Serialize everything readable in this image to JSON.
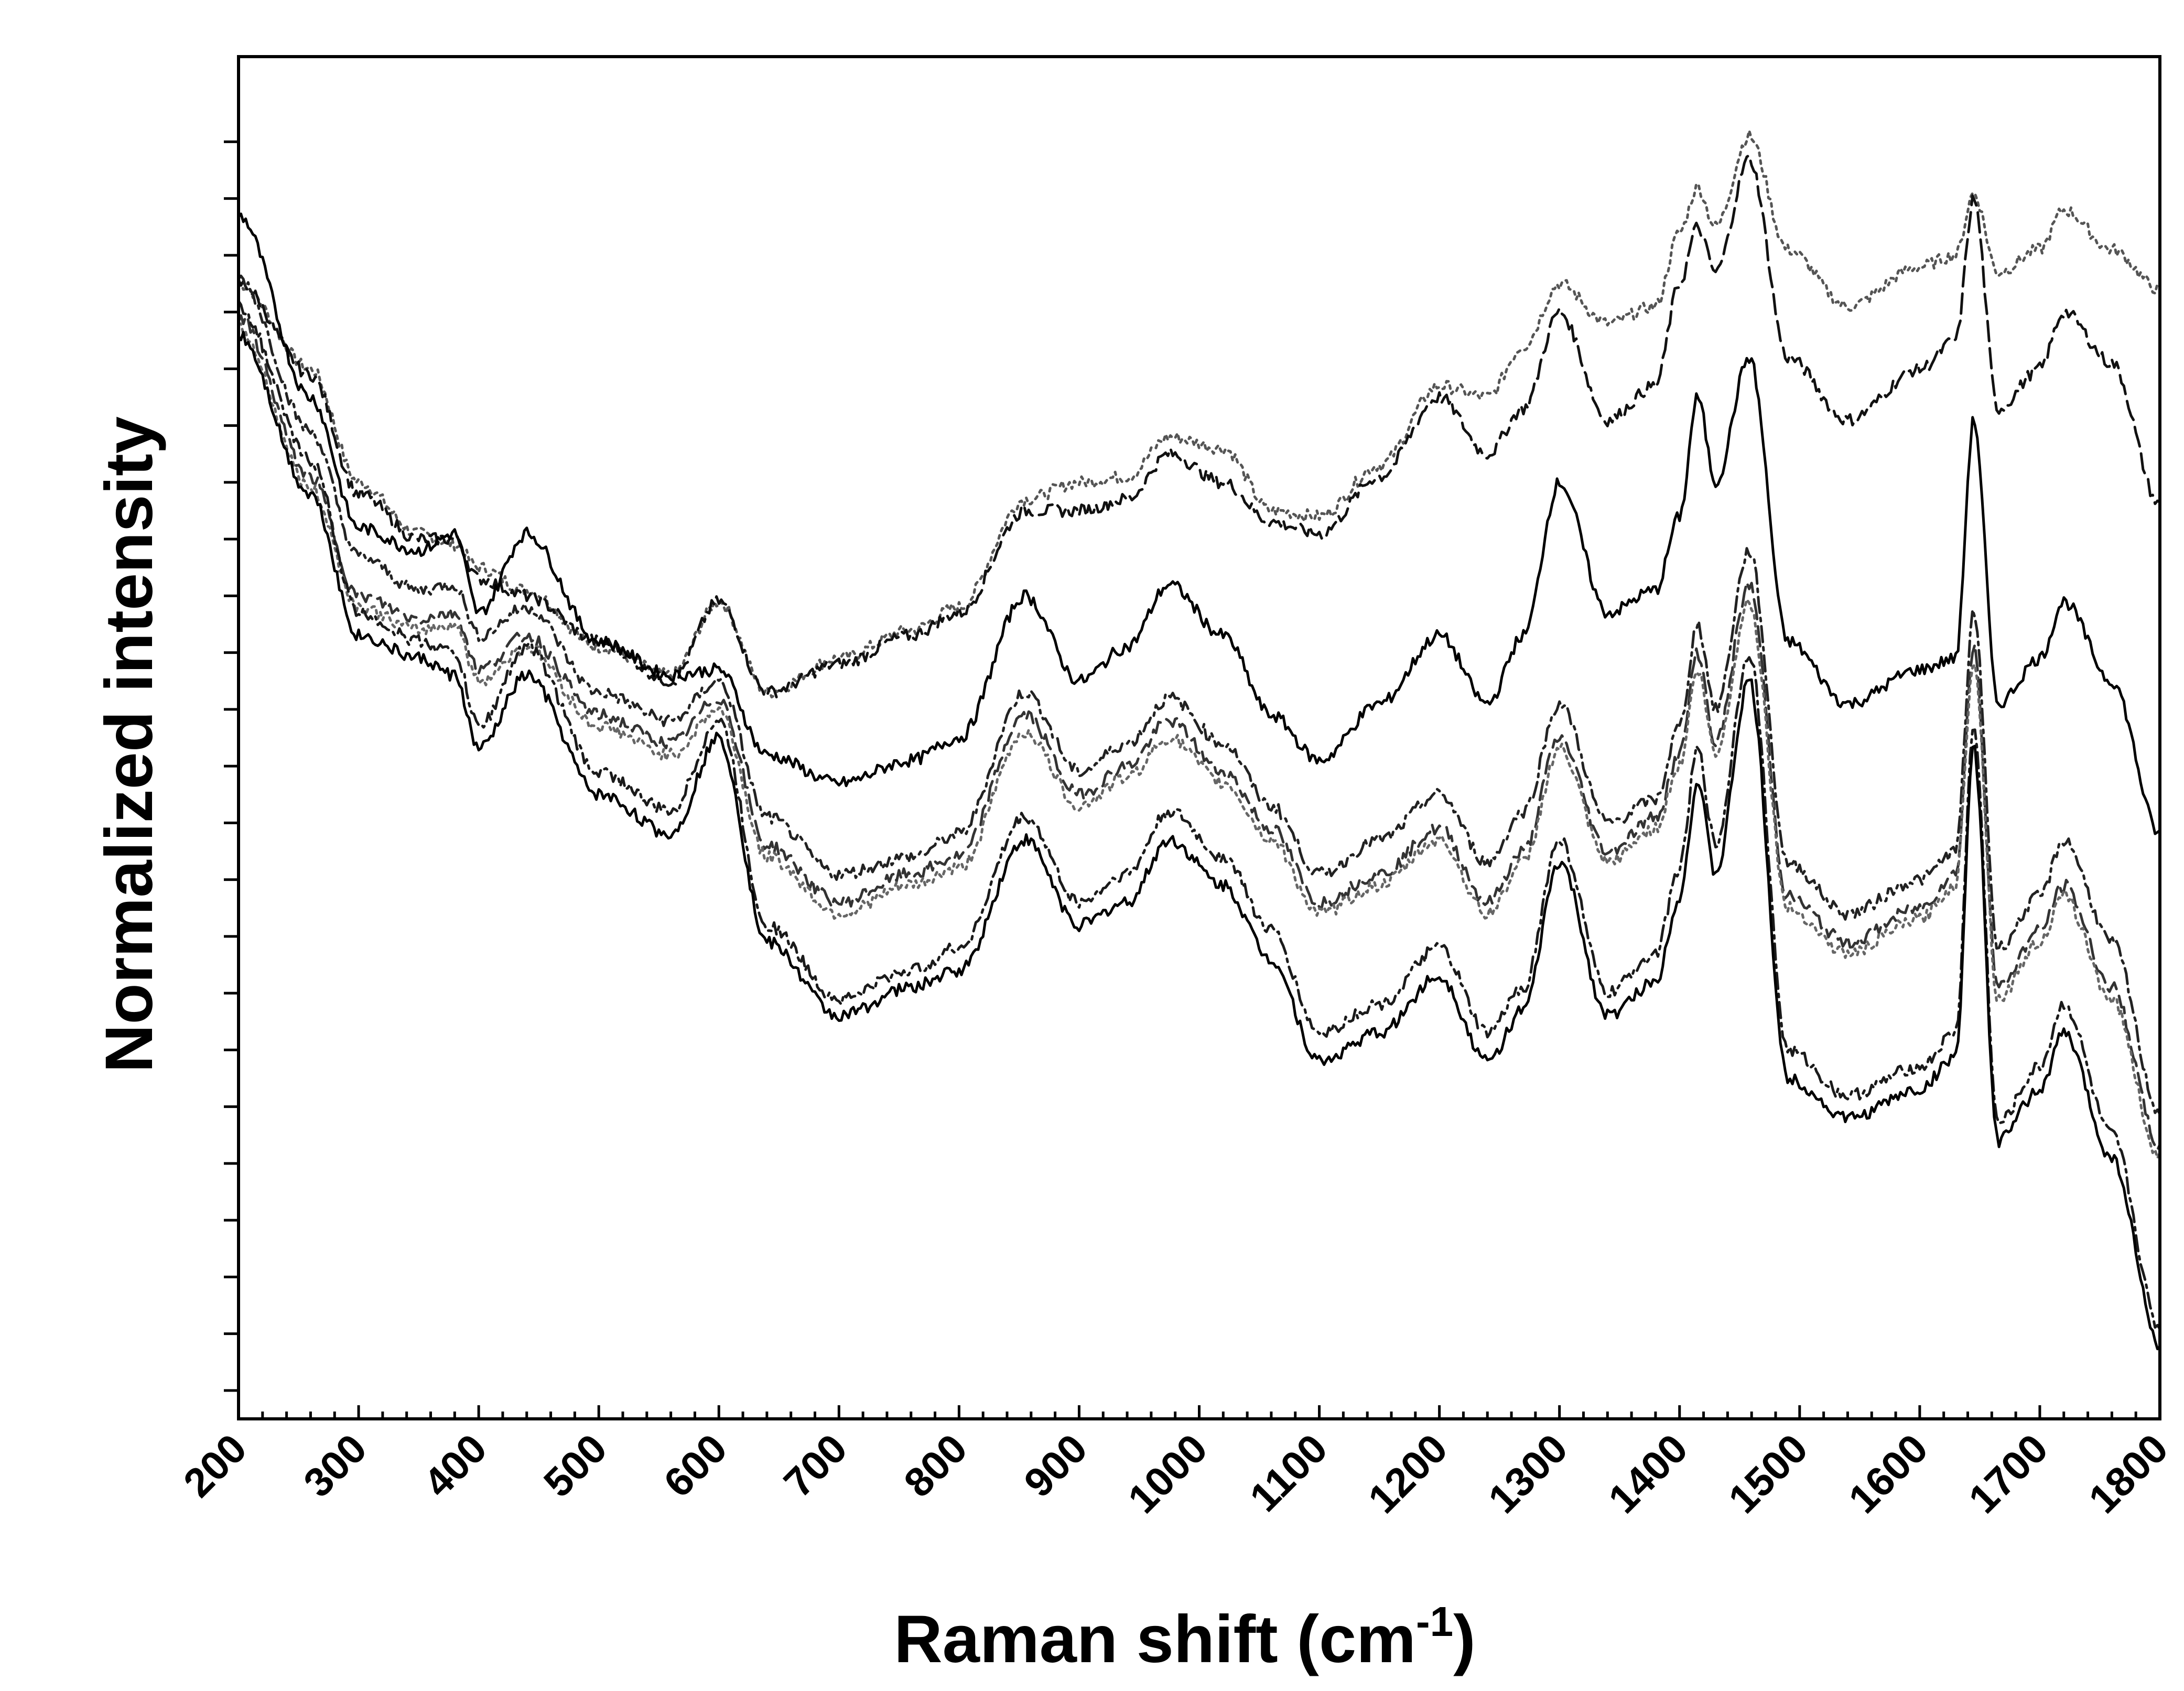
{
  "chart_data": {
    "type": "line",
    "title": "",
    "xlabel": "Raman shift (cm",
    "xlabel_superscript": "-1",
    "xlabel_close": ")",
    "ylabel": "Normalized intensity",
    "xlim": [
      200,
      1800
    ],
    "ylim": [
      0,
      24
    ],
    "x_ticks": [
      200,
      300,
      400,
      500,
      600,
      700,
      800,
      900,
      1000,
      1100,
      1200,
      1300,
      1400,
      1500,
      1600,
      1700,
      1800
    ],
    "x_tick_labels": [
      "200",
      "300",
      "400",
      "500",
      "600",
      "700",
      "800",
      "900",
      "1000",
      "1100",
      "1200",
      "1300",
      "1400",
      "1500",
      "1600",
      "1700",
      "1800"
    ],
    "y_tick_values": [
      0.5,
      1.5,
      2.5,
      3.5,
      4.5,
      5.5,
      6.5,
      7.5,
      8.5,
      9.5,
      10.5,
      11.5,
      12.5,
      13.5,
      14.5,
      15.5,
      16.5,
      17.5,
      18.5,
      19.5,
      20.5,
      21.5,
      22.5
    ],
    "y_tick_labels_shown": false,
    "grid": false,
    "legend": "none",
    "series": [
      {
        "style": "dotted",
        "color": "#555555",
        "x": [
          200,
          260,
          300,
          350,
          380,
          400,
          440,
          500,
          560,
          600,
          640,
          700,
          760,
          800,
          855,
          900,
          940,
          975,
          1020,
          1060,
          1100,
          1150,
          1200,
          1240,
          1270,
          1300,
          1340,
          1380,
          1400,
          1415,
          1430,
          1458,
          1490,
          1540,
          1600,
          1630,
          1645,
          1665,
          1700,
          1720,
          1760,
          1800
        ],
        "y": [
          20.0,
          18.5,
          16.5,
          15.6,
          15.4,
          15.0,
          14.6,
          13.6,
          13.1,
          14.4,
          12.8,
          13.4,
          13.9,
          14.3,
          16.2,
          16.5,
          16.6,
          17.3,
          17.1,
          16.0,
          15.9,
          16.8,
          18.2,
          18.0,
          18.9,
          20.0,
          19.3,
          19.6,
          20.9,
          21.7,
          21.0,
          22.6,
          20.6,
          19.6,
          20.3,
          20.5,
          21.6,
          20.2,
          20.6,
          21.3,
          20.6,
          19.9
        ]
      },
      {
        "style": "dashed",
        "color": "#111111",
        "x": [
          200,
          260,
          300,
          350,
          380,
          400,
          440,
          500,
          560,
          600,
          640,
          700,
          760,
          800,
          855,
          900,
          940,
          975,
          1020,
          1060,
          1100,
          1150,
          1200,
          1240,
          1270,
          1300,
          1340,
          1380,
          1400,
          1415,
          1430,
          1458,
          1490,
          1540,
          1600,
          1630,
          1645,
          1665,
          1700,
          1720,
          1760,
          1800
        ],
        "y": [
          20.0,
          18.4,
          16.3,
          15.5,
          15.5,
          14.8,
          14.5,
          13.7,
          13.0,
          14.4,
          12.8,
          13.3,
          13.8,
          14.2,
          16.0,
          16.0,
          16.2,
          17.0,
          16.5,
          15.8,
          15.6,
          16.6,
          18.0,
          17.0,
          17.8,
          19.5,
          17.6,
          18.2,
          20.0,
          21.0,
          20.2,
          22.2,
          18.7,
          17.6,
          18.5,
          19.0,
          21.5,
          17.8,
          18.5,
          19.5,
          18.6,
          16.1
        ]
      },
      {
        "style": "solid",
        "color": "#000000",
        "x": [
          200,
          260,
          300,
          350,
          380,
          400,
          440,
          500,
          560,
          600,
          640,
          700,
          760,
          800,
          855,
          900,
          940,
          975,
          1020,
          1060,
          1100,
          1150,
          1200,
          1240,
          1270,
          1300,
          1340,
          1380,
          1400,
          1415,
          1430,
          1458,
          1490,
          1540,
          1600,
          1630,
          1645,
          1665,
          1700,
          1720,
          1760,
          1800
        ],
        "y": [
          21.2,
          18.0,
          15.7,
          15.3,
          15.6,
          14.2,
          15.6,
          13.7,
          13.1,
          13.2,
          11.7,
          11.2,
          11.6,
          12.0,
          14.5,
          13.0,
          13.6,
          14.7,
          13.8,
          12.4,
          11.6,
          12.6,
          13.8,
          12.6,
          13.8,
          16.5,
          14.2,
          14.6,
          15.9,
          18.0,
          16.5,
          18.7,
          13.7,
          12.6,
          13.2,
          13.4,
          17.6,
          12.6,
          13.4,
          14.4,
          13.0,
          10.3
        ]
      },
      {
        "style": "dash-dot",
        "color": "#222222",
        "x": [
          200,
          260,
          300,
          350,
          380,
          400,
          440,
          500,
          560,
          600,
          640,
          700,
          760,
          800,
          855,
          900,
          940,
          975,
          1020,
          1060,
          1100,
          1150,
          1200,
          1240,
          1270,
          1300,
          1340,
          1380,
          1400,
          1415,
          1430,
          1458,
          1490,
          1540,
          1600,
          1630,
          1645,
          1665,
          1700,
          1720,
          1760,
          1800
        ],
        "y": [
          20.1,
          17.4,
          15.2,
          14.6,
          14.7,
          13.8,
          14.3,
          12.8,
          12.3,
          13.0,
          10.6,
          9.6,
          9.9,
          10.3,
          12.8,
          11.4,
          11.9,
          12.7,
          11.9,
          10.8,
          9.6,
          10.2,
          11.0,
          9.8,
          10.7,
          12.6,
          10.5,
          10.9,
          12.2,
          14.0,
          12.5,
          15.3,
          9.8,
          8.9,
          9.5,
          10.0,
          14.2,
          8.3,
          9.2,
          10.2,
          8.4,
          5.4
        ]
      },
      {
        "style": "dashed",
        "color": "#333333",
        "x": [
          200,
          260,
          300,
          350,
          380,
          400,
          440,
          500,
          560,
          600,
          640,
          700,
          760,
          800,
          855,
          900,
          940,
          975,
          1020,
          1060,
          1100,
          1150,
          1200,
          1240,
          1270,
          1300,
          1340,
          1380,
          1400,
          1415,
          1430,
          1458,
          1490,
          1540,
          1600,
          1630,
          1645,
          1665,
          1700,
          1720,
          1760,
          1800
        ],
        "y": [
          19.4,
          16.6,
          14.5,
          14.1,
          14.2,
          13.2,
          13.8,
          12.4,
          11.9,
          12.7,
          10.1,
          9.1,
          9.6,
          9.9,
          12.4,
          11.0,
          11.5,
          12.3,
          11.4,
          10.4,
          9.1,
          9.6,
          10.4,
          9.1,
          10.0,
          12.0,
          10.0,
          10.6,
          11.7,
          13.5,
          11.9,
          14.7,
          9.2,
          8.4,
          9.0,
          9.6,
          13.6,
          7.6,
          8.6,
          9.4,
          7.6,
          4.8
        ]
      },
      {
        "style": "dotted",
        "color": "#666666",
        "x": [
          200,
          260,
          300,
          350,
          380,
          400,
          440,
          500,
          560,
          600,
          640,
          700,
          760,
          800,
          855,
          900,
          940,
          975,
          1020,
          1060,
          1100,
          1150,
          1200,
          1240,
          1270,
          1300,
          1340,
          1380,
          1400,
          1415,
          1430,
          1458,
          1490,
          1540,
          1600,
          1630,
          1645,
          1665,
          1700,
          1720,
          1760,
          1800
        ],
        "y": [
          19.2,
          16.4,
          14.3,
          13.9,
          14.0,
          13.0,
          13.6,
          12.2,
          11.7,
          12.5,
          9.9,
          8.9,
          9.4,
          9.7,
          12.1,
          10.8,
          11.3,
          12.0,
          11.2,
          10.2,
          8.9,
          9.4,
          10.2,
          8.9,
          9.8,
          11.8,
          9.8,
          10.4,
          11.5,
          13.2,
          11.7,
          14.4,
          9.0,
          8.2,
          8.8,
          9.4,
          13.4,
          7.4,
          8.4,
          9.2,
          7.4,
          4.6
        ]
      },
      {
        "style": "dash-dot",
        "color": "#1a1a1a",
        "x": [
          200,
          260,
          300,
          350,
          380,
          400,
          440,
          500,
          560,
          600,
          640,
          700,
          760,
          800,
          855,
          900,
          940,
          975,
          1020,
          1060,
          1100,
          1150,
          1200,
          1240,
          1270,
          1300,
          1340,
          1380,
          1400,
          1415,
          1430,
          1458,
          1490,
          1540,
          1600,
          1630,
          1645,
          1665,
          1700,
          1720,
          1760,
          1800
        ],
        "y": [
          19.6,
          16.9,
          14.2,
          13.7,
          13.5,
          12.2,
          13.6,
          11.4,
          10.7,
          12.3,
          8.7,
          7.4,
          7.9,
          8.3,
          10.6,
          9.1,
          9.6,
          10.7,
          9.9,
          8.6,
          6.8,
          7.3,
          8.3,
          6.8,
          7.6,
          10.2,
          7.5,
          8.2,
          9.7,
          11.8,
          10.1,
          13.5,
          6.5,
          5.7,
          6.2,
          6.8,
          12.2,
          5.2,
          6.2,
          7.3,
          5.0,
          1.6
        ]
      },
      {
        "style": "solid",
        "color": "#000000",
        "x": [
          200,
          260,
          300,
          350,
          380,
          400,
          440,
          500,
          560,
          600,
          640,
          700,
          760,
          800,
          855,
          900,
          940,
          975,
          1020,
          1060,
          1100,
          1150,
          1200,
          1240,
          1270,
          1300,
          1340,
          1380,
          1400,
          1415,
          1430,
          1458,
          1490,
          1540,
          1600,
          1630,
          1645,
          1665,
          1700,
          1720,
          1760,
          1800
        ],
        "y": [
          19.1,
          16.3,
          13.8,
          13.4,
          13.1,
          11.8,
          13.1,
          11.0,
          10.3,
          12.0,
          8.4,
          7.1,
          7.6,
          7.9,
          10.2,
          8.7,
          9.1,
          10.2,
          9.4,
          8.1,
          6.3,
          6.8,
          7.8,
          6.3,
          7.2,
          9.8,
          7.1,
          7.7,
          9.2,
          11.2,
          9.6,
          13.0,
          6.0,
          5.3,
          5.8,
          6.4,
          11.8,
          4.9,
          5.8,
          6.8,
          4.6,
          1.3
        ]
      }
    ]
  }
}
